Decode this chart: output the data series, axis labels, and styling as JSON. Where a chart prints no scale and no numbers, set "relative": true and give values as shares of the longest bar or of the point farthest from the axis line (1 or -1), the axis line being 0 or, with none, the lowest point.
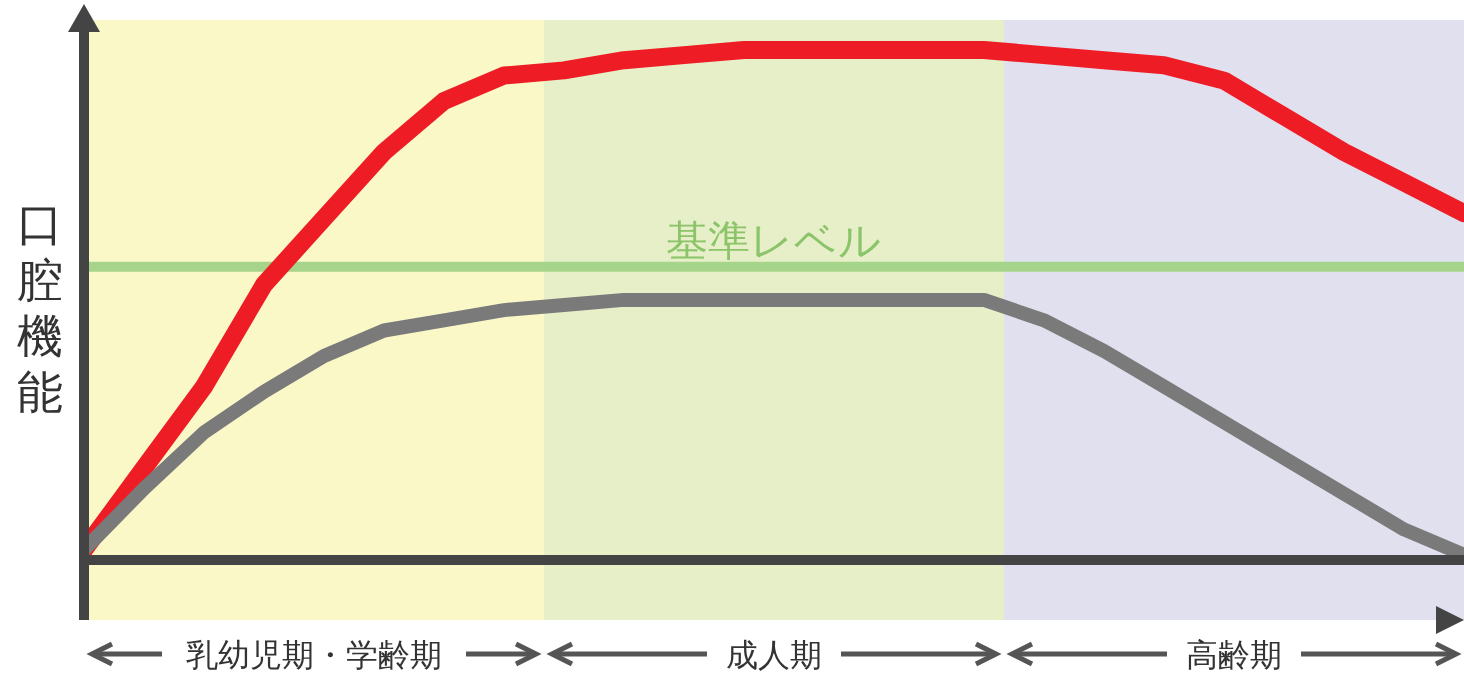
{
  "chart_data": {
    "type": "line",
    "relative": true,
    "ylabel": "口腔機能",
    "categories": [
      null,
      null,
      null,
      null,
      null,
      null,
      null,
      null,
      null,
      null,
      null,
      null,
      null,
      null,
      null,
      null,
      null,
      null,
      null,
      null,
      null,
      null,
      null,
      null
    ],
    "series": [
      {
        "color": "#ee1c25",
        "values": [
          0.02,
          0.18,
          0.34,
          0.54,
          0.67,
          0.8,
          0.9,
          0.95,
          0.96,
          0.98,
          0.99,
          1,
          1,
          1,
          1,
          1,
          0.99,
          0.98,
          0.97,
          0.94,
          0.87,
          0.8,
          0.74,
          0.68
        ]
      },
      {
        "color": "#7a7a7a",
        "values": [
          0.02,
          0.14,
          0.25,
          0.33,
          0.4,
          0.45,
          0.47,
          0.49,
          0.5,
          0.51,
          0.51,
          0.51,
          0.51,
          0.51,
          0.51,
          0.51,
          0.47,
          0.41,
          0.34,
          0.27,
          0.2,
          0.13,
          0.06,
          0.01
        ]
      }
    ],
    "ref_lines": [
      {
        "axis": "y",
        "value": 0.575,
        "label": "基準レベル",
        "color": "#a6d48a"
      }
    ],
    "annotations": [
      "乳幼児期・学齢期",
      "成人期",
      "高齢期"
    ],
    "grid": false,
    "legend": false
  }
}
